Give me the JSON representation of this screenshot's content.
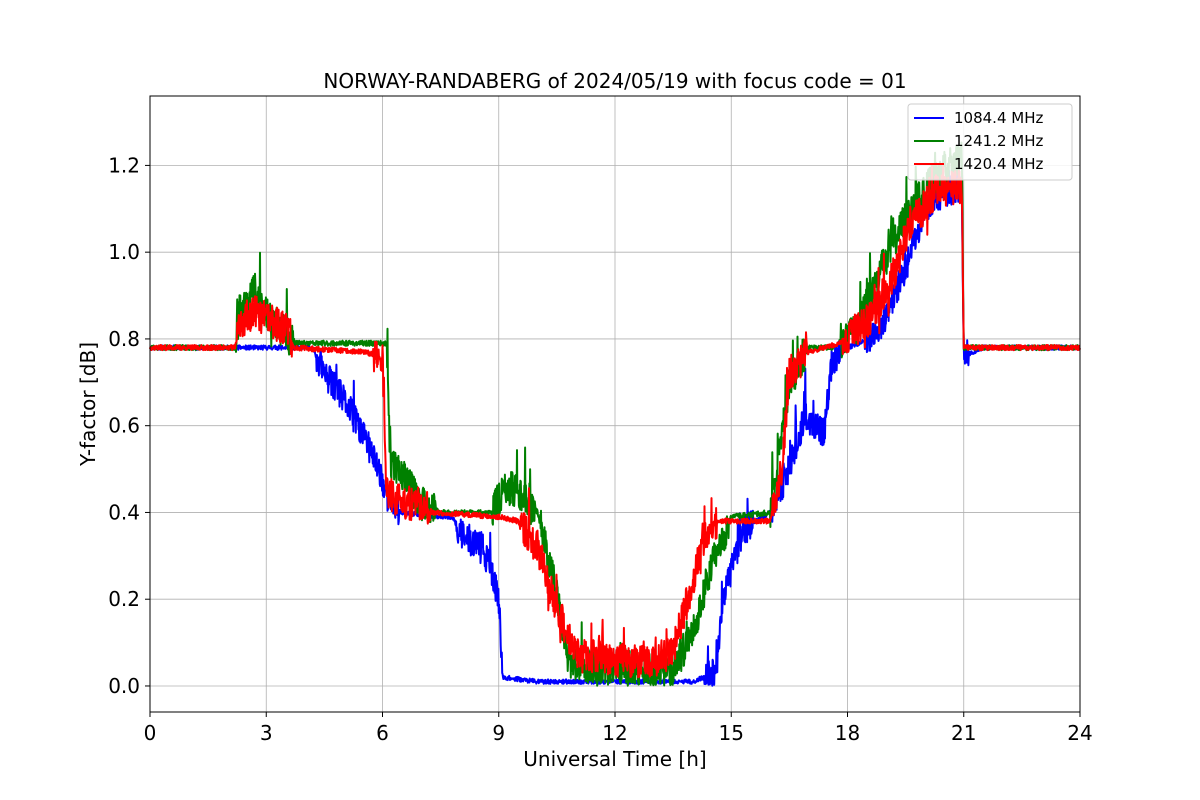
{
  "chart_data": {
    "type": "line",
    "title": "NORWAY-RANDABERG of 2024/05/19 with focus code = 01",
    "xlabel": "Universal Time [h]",
    "ylabel": "Y-factor [dB]",
    "xlim": [
      0,
      24
    ],
    "ylim": [
      -0.06,
      1.36
    ],
    "xticks": [
      0,
      3,
      6,
      9,
      12,
      15,
      18,
      21,
      24
    ],
    "xtick_labels": [
      "0",
      "3",
      "6",
      "9",
      "12",
      "15",
      "18",
      "21",
      "24"
    ],
    "yticks": [
      0.0,
      0.2,
      0.4,
      0.6,
      0.8,
      1.0,
      1.2
    ],
    "ytick_labels": [
      "0.0",
      "0.2",
      "0.4",
      "0.6",
      "0.8",
      "1.0",
      "1.2"
    ],
    "grid": true,
    "legend_position": "top-right",
    "series": [
      {
        "name": "1084.4 MHz",
        "color": "#0000ff",
        "anchors": [
          [
            0,
            0.78
          ],
          [
            2.2,
            0.78
          ],
          [
            2.3,
            0.78
          ],
          [
            3.6,
            0.78
          ],
          [
            4.2,
            0.78
          ],
          [
            4.5,
            0.72
          ],
          [
            5.0,
            0.66
          ],
          [
            5.5,
            0.58
          ],
          [
            5.9,
            0.5
          ],
          [
            6.2,
            0.42
          ],
          [
            6.5,
            0.4
          ],
          [
            7.5,
            0.39
          ],
          [
            7.8,
            0.39
          ],
          [
            8.1,
            0.34
          ],
          [
            8.6,
            0.32
          ],
          [
            9.0,
            0.2
          ],
          [
            9.1,
            0.02
          ],
          [
            10.0,
            0.01
          ],
          [
            12.0,
            0.01
          ],
          [
            14.0,
            0.01
          ],
          [
            14.6,
            0.03
          ],
          [
            14.8,
            0.2
          ],
          [
            15.3,
            0.36
          ],
          [
            16.0,
            0.4
          ],
          [
            16.5,
            0.5
          ],
          [
            16.9,
            0.62
          ],
          [
            17.4,
            0.58
          ],
          [
            17.6,
            0.75
          ],
          [
            18.0,
            0.78
          ],
          [
            18.6,
            0.8
          ],
          [
            19.0,
            0.85
          ],
          [
            19.5,
            0.96
          ],
          [
            20.0,
            1.1
          ],
          [
            20.5,
            1.14
          ],
          [
            20.95,
            1.15
          ],
          [
            21.0,
            0.76
          ],
          [
            21.5,
            0.78
          ],
          [
            24,
            0.78
          ]
        ],
        "noise": 0.035,
        "seed": 11
      },
      {
        "name": "1241.2 MHz",
        "color": "#008000",
        "anchors": [
          [
            0,
            0.78
          ],
          [
            2.2,
            0.78
          ],
          [
            2.3,
            0.86
          ],
          [
            2.7,
            0.92
          ],
          [
            3.0,
            0.86
          ],
          [
            3.6,
            0.8
          ],
          [
            3.8,
            0.79
          ],
          [
            6.1,
            0.79
          ],
          [
            6.2,
            0.52
          ],
          [
            6.6,
            0.48
          ],
          [
            7.0,
            0.42
          ],
          [
            7.5,
            0.4
          ],
          [
            8.8,
            0.4
          ],
          [
            9.2,
            0.46
          ],
          [
            9.7,
            0.44
          ],
          [
            10.0,
            0.4
          ],
          [
            10.4,
            0.25
          ],
          [
            10.8,
            0.06
          ],
          [
            11.5,
            0.04
          ],
          [
            12.5,
            0.03
          ],
          [
            13.5,
            0.04
          ],
          [
            14.0,
            0.12
          ],
          [
            14.5,
            0.28
          ],
          [
            15.0,
            0.39
          ],
          [
            16.0,
            0.4
          ],
          [
            16.5,
            0.7
          ],
          [
            17.0,
            0.78
          ],
          [
            17.6,
            0.78
          ],
          [
            18.2,
            0.82
          ],
          [
            18.8,
            0.95
          ],
          [
            19.4,
            1.06
          ],
          [
            19.8,
            1.12
          ],
          [
            20.3,
            1.18
          ],
          [
            20.95,
            1.22
          ],
          [
            21.0,
            0.78
          ],
          [
            24,
            0.78
          ]
        ],
        "noise": 0.04,
        "seed": 23
      },
      {
        "name": "1420.4 MHz",
        "color": "#ff0000",
        "anchors": [
          [
            0,
            0.78
          ],
          [
            2.2,
            0.78
          ],
          [
            2.3,
            0.84
          ],
          [
            2.7,
            0.86
          ],
          [
            3.6,
            0.82
          ],
          [
            3.7,
            0.78
          ],
          [
            5.5,
            0.77
          ],
          [
            6.0,
            0.76
          ],
          [
            6.1,
            0.45
          ],
          [
            6.5,
            0.42
          ],
          [
            7.0,
            0.42
          ],
          [
            7.3,
            0.4
          ],
          [
            9.0,
            0.39
          ],
          [
            9.5,
            0.38
          ],
          [
            10.0,
            0.32
          ],
          [
            10.5,
            0.18
          ],
          [
            11.0,
            0.07
          ],
          [
            12.0,
            0.06
          ],
          [
            13.0,
            0.06
          ],
          [
            13.5,
            0.08
          ],
          [
            14.0,
            0.24
          ],
          [
            14.4,
            0.36
          ],
          [
            14.7,
            0.38
          ],
          [
            16.0,
            0.38
          ],
          [
            16.3,
            0.5
          ],
          [
            16.5,
            0.72
          ],
          [
            17.0,
            0.77
          ],
          [
            17.8,
            0.79
          ],
          [
            18.5,
            0.84
          ],
          [
            19.0,
            0.9
          ],
          [
            19.6,
            1.06
          ],
          [
            20.3,
            1.14
          ],
          [
            20.95,
            1.15
          ],
          [
            21.0,
            0.78
          ],
          [
            24,
            0.78
          ]
        ],
        "noise": 0.04,
        "seed": 37
      }
    ]
  }
}
